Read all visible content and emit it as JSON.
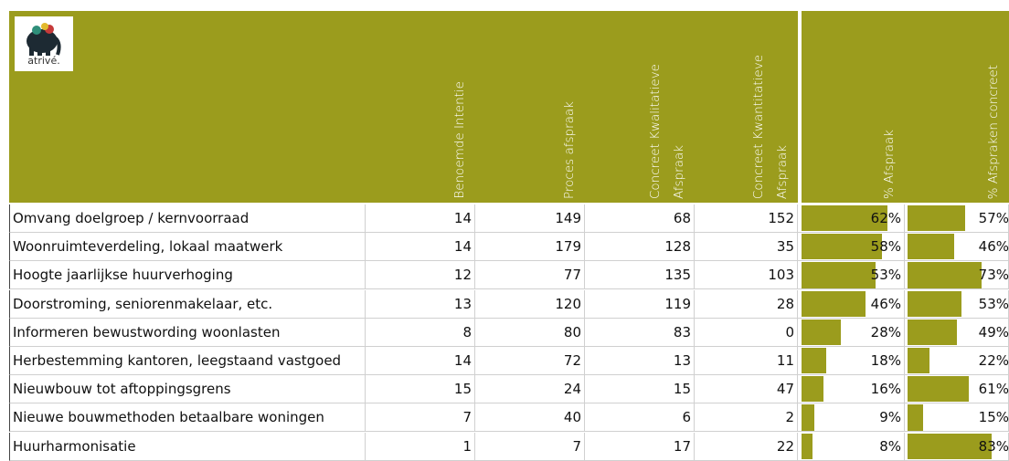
{
  "logo": {
    "text": "atrivé."
  },
  "table": {
    "headers": [
      [
        "Benoemde Intentie"
      ],
      [
        "Proces afspraak"
      ],
      [
        "Concreet Kwalitatieve",
        "Afspraak"
      ],
      [
        "Concreet Kwantitatieve",
        "Afspraak"
      ],
      [
        "% Afspraak"
      ],
      [
        "% Afspraken concreet"
      ]
    ],
    "rows": [
      {
        "label": "Omvang doelgroep / kernvoorraad",
        "values": [
          14,
          149,
          68,
          152
        ],
        "pct": [
          62,
          57
        ],
        "pct_labels": [
          "62%",
          "57%"
        ]
      },
      {
        "label": "Woonruimteverdeling, lokaal maatwerk",
        "values": [
          14,
          179,
          128,
          35
        ],
        "pct": [
          58,
          46
        ],
        "pct_labels": [
          "58%",
          "46%"
        ]
      },
      {
        "label": "Hoogte jaarlijkse huurverhoging",
        "values": [
          12,
          77,
          135,
          103
        ],
        "pct": [
          53,
          73
        ],
        "pct_labels": [
          "53%",
          "73%"
        ]
      },
      {
        "label": "Doorstroming, seniorenmakelaar, etc.",
        "values": [
          13,
          120,
          119,
          28
        ],
        "pct": [
          46,
          53
        ],
        "pct_labels": [
          "46%",
          "53%"
        ]
      },
      {
        "label": "Informeren bewustwording woonlasten",
        "values": [
          8,
          80,
          83,
          0
        ],
        "pct": [
          28,
          49
        ],
        "pct_labels": [
          "28%",
          "49%"
        ]
      },
      {
        "label": "Herbestemming kantoren, leegstaand vastgoed",
        "values": [
          14,
          72,
          13,
          11
        ],
        "pct": [
          18,
          22
        ],
        "pct_labels": [
          "18%",
          "22%"
        ]
      },
      {
        "label": "Nieuwbouw tot aftoppingsgrens",
        "values": [
          15,
          24,
          15,
          47
        ],
        "pct": [
          16,
          61
        ],
        "pct_labels": [
          "16%",
          "61%"
        ]
      },
      {
        "label": "Nieuwe bouwmethoden betaalbare woningen",
        "values": [
          7,
          40,
          6,
          2
        ],
        "pct": [
          9,
          15
        ],
        "pct_labels": [
          "9%",
          "15%"
        ]
      },
      {
        "label": "Huurharmonisatie",
        "values": [
          1,
          7,
          17,
          22
        ],
        "pct": [
          8,
          83
        ],
        "pct_labels": [
          "8%",
          "83%"
        ]
      }
    ]
  }
}
